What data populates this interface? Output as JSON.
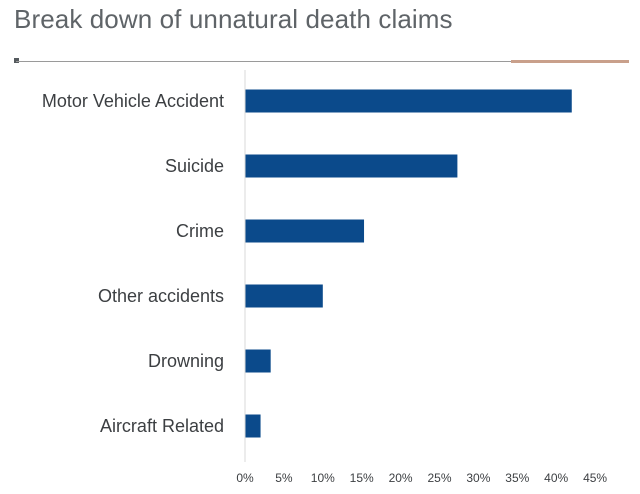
{
  "chart_data": {
    "type": "bar",
    "orientation": "horizontal",
    "title": "Break down of unnatural death claims",
    "categories": [
      "Motor Vehicle Accident",
      "Suicide",
      "Crime",
      "Other accidents",
      "Drowning",
      "Aircraft Related"
    ],
    "values": [
      42,
      27.3,
      15.3,
      10,
      3.3,
      2
    ],
    "x_ticks": [
      "0%",
      "5%",
      "10%",
      "15%",
      "20%",
      "25%",
      "30%",
      "35%",
      "40%",
      "45%"
    ],
    "xlim": [
      0,
      45
    ],
    "unit": "%",
    "grid": false,
    "legend": "none",
    "colors": {
      "bar": "#0b4a8b",
      "axis": "#d9d9d9",
      "accent": "#c9a08b"
    }
  }
}
